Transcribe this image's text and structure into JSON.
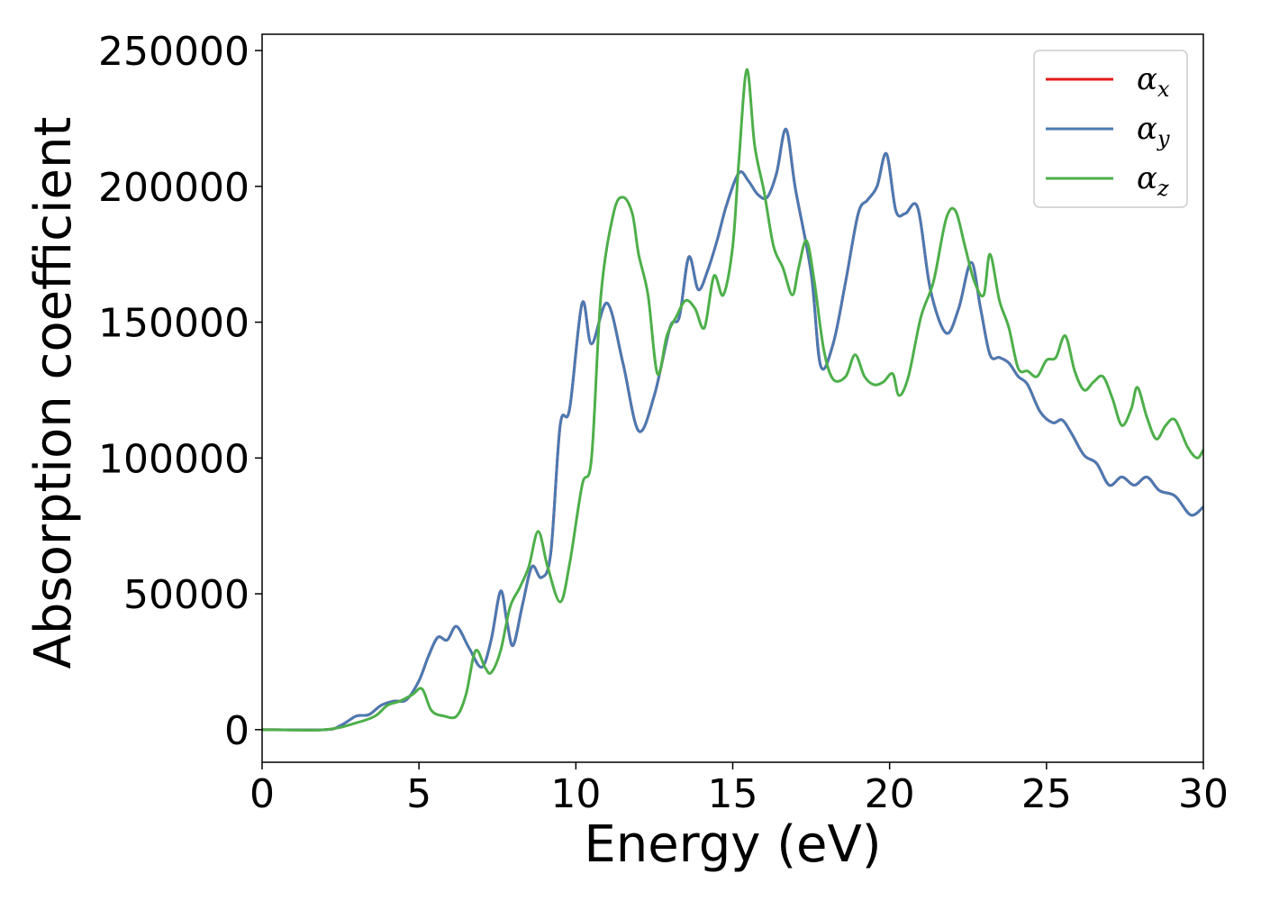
{
  "chart_data": {
    "type": "line",
    "title": "",
    "xlabel": "Energy (eV)",
    "ylabel": "Absorption coefficient",
    "xlim": [
      0,
      30
    ],
    "ylim": [
      -12000,
      256000
    ],
    "xticks": [
      0,
      5,
      10,
      15,
      20,
      25,
      30
    ],
    "yticks": [
      0,
      50000,
      100000,
      150000,
      200000,
      250000
    ],
    "grid": false,
    "legend_position": "top-right",
    "series": [
      {
        "name": "α",
        "sub": "x",
        "color": "#e41a1c",
        "points": [
          [
            0,
            0
          ],
          [
            2,
            0
          ],
          [
            2.5,
            1500
          ],
          [
            3,
            5000
          ],
          [
            3.4,
            5500
          ],
          [
            3.8,
            9000
          ],
          [
            4.2,
            10500
          ],
          [
            4.6,
            11000
          ],
          [
            5,
            18000
          ],
          [
            5.3,
            27000
          ],
          [
            5.6,
            34000
          ],
          [
            5.9,
            33000
          ],
          [
            6.2,
            38000
          ],
          [
            6.6,
            30000
          ],
          [
            7,
            23000
          ],
          [
            7.3,
            33000
          ],
          [
            7.6,
            51000
          ],
          [
            7.8,
            40000
          ],
          [
            8,
            31000
          ],
          [
            8.3,
            46000
          ],
          [
            8.6,
            60000
          ],
          [
            8.9,
            56000
          ],
          [
            9.2,
            65000
          ],
          [
            9.5,
            112000
          ],
          [
            9.8,
            118000
          ],
          [
            10.2,
            157000
          ],
          [
            10.5,
            142000
          ],
          [
            11,
            157000
          ],
          [
            11.5,
            135000
          ],
          [
            12,
            110000
          ],
          [
            12.5,
            123000
          ],
          [
            13,
            148000
          ],
          [
            13.3,
            152000
          ],
          [
            13.6,
            174000
          ],
          [
            13.9,
            162000
          ],
          [
            14.2,
            169000
          ],
          [
            14.5,
            180000
          ],
          [
            14.8,
            193000
          ],
          [
            15.2,
            205000
          ],
          [
            15.5,
            202000
          ],
          [
            15.8,
            197000
          ],
          [
            16.1,
            196000
          ],
          [
            16.4,
            205000
          ],
          [
            16.7,
            221000
          ],
          [
            17,
            199000
          ],
          [
            17.5,
            168000
          ],
          [
            17.8,
            134000
          ],
          [
            18.2,
            142000
          ],
          [
            18.6,
            165000
          ],
          [
            19,
            190000
          ],
          [
            19.3,
            195000
          ],
          [
            19.6,
            200000
          ],
          [
            19.9,
            212000
          ],
          [
            20.2,
            191000
          ],
          [
            20.5,
            190000
          ],
          [
            20.9,
            192000
          ],
          [
            21.3,
            162000
          ],
          [
            21.8,
            146000
          ],
          [
            22.2,
            155000
          ],
          [
            22.6,
            172000
          ],
          [
            22.9,
            155000
          ],
          [
            23.2,
            138000
          ],
          [
            23.5,
            137000
          ],
          [
            23.8,
            135000
          ],
          [
            24.1,
            130000
          ],
          [
            24.4,
            127000
          ],
          [
            24.8,
            117000
          ],
          [
            25.2,
            113000
          ],
          [
            25.5,
            114000
          ],
          [
            25.8,
            109000
          ],
          [
            26.2,
            101000
          ],
          [
            26.6,
            98000
          ],
          [
            27,
            90000
          ],
          [
            27.4,
            93000
          ],
          [
            27.8,
            90000
          ],
          [
            28.2,
            93000
          ],
          [
            28.6,
            88000
          ],
          [
            29.1,
            86000
          ],
          [
            29.6,
            79000
          ],
          [
            30,
            82000
          ]
        ]
      },
      {
        "name": "α",
        "sub": "y",
        "color": "#4a7ab3",
        "points": [
          [
            0,
            0
          ],
          [
            2,
            0
          ],
          [
            2.5,
            1500
          ],
          [
            3,
            5000
          ],
          [
            3.4,
            5500
          ],
          [
            3.8,
            9000
          ],
          [
            4.2,
            10500
          ],
          [
            4.6,
            11000
          ],
          [
            5,
            18000
          ],
          [
            5.3,
            27000
          ],
          [
            5.6,
            34000
          ],
          [
            5.9,
            33000
          ],
          [
            6.2,
            38000
          ],
          [
            6.6,
            30000
          ],
          [
            7,
            23000
          ],
          [
            7.3,
            33000
          ],
          [
            7.6,
            51000
          ],
          [
            7.8,
            40000
          ],
          [
            8,
            31000
          ],
          [
            8.3,
            46000
          ],
          [
            8.6,
            60000
          ],
          [
            8.9,
            56000
          ],
          [
            9.2,
            65000
          ],
          [
            9.5,
            112000
          ],
          [
            9.8,
            118000
          ],
          [
            10.2,
            157000
          ],
          [
            10.5,
            142000
          ],
          [
            11,
            157000
          ],
          [
            11.5,
            135000
          ],
          [
            12,
            110000
          ],
          [
            12.5,
            123000
          ],
          [
            13,
            148000
          ],
          [
            13.3,
            152000
          ],
          [
            13.6,
            174000
          ],
          [
            13.9,
            162000
          ],
          [
            14.2,
            169000
          ],
          [
            14.5,
            180000
          ],
          [
            14.8,
            193000
          ],
          [
            15.2,
            205000
          ],
          [
            15.5,
            202000
          ],
          [
            15.8,
            197000
          ],
          [
            16.1,
            196000
          ],
          [
            16.4,
            205000
          ],
          [
            16.7,
            221000
          ],
          [
            17,
            199000
          ],
          [
            17.5,
            168000
          ],
          [
            17.8,
            134000
          ],
          [
            18.2,
            142000
          ],
          [
            18.6,
            165000
          ],
          [
            19,
            190000
          ],
          [
            19.3,
            195000
          ],
          [
            19.6,
            200000
          ],
          [
            19.9,
            212000
          ],
          [
            20.2,
            191000
          ],
          [
            20.5,
            190000
          ],
          [
            20.9,
            192000
          ],
          [
            21.3,
            162000
          ],
          [
            21.8,
            146000
          ],
          [
            22.2,
            155000
          ],
          [
            22.6,
            172000
          ],
          [
            22.9,
            155000
          ],
          [
            23.2,
            138000
          ],
          [
            23.5,
            137000
          ],
          [
            23.8,
            135000
          ],
          [
            24.1,
            130000
          ],
          [
            24.4,
            127000
          ],
          [
            24.8,
            117000
          ],
          [
            25.2,
            113000
          ],
          [
            25.5,
            114000
          ],
          [
            25.8,
            109000
          ],
          [
            26.2,
            101000
          ],
          [
            26.6,
            98000
          ],
          [
            27,
            90000
          ],
          [
            27.4,
            93000
          ],
          [
            27.8,
            90000
          ],
          [
            28.2,
            93000
          ],
          [
            28.6,
            88000
          ],
          [
            29.1,
            86000
          ],
          [
            29.6,
            79000
          ],
          [
            30,
            82000
          ]
        ]
      },
      {
        "name": "α",
        "sub": "z",
        "color": "#4daf4a",
        "points": [
          [
            0,
            0
          ],
          [
            2,
            0
          ],
          [
            3,
            2500
          ],
          [
            3.6,
            5000
          ],
          [
            4,
            9000
          ],
          [
            4.4,
            10500
          ],
          [
            4.8,
            13000
          ],
          [
            5.1,
            15000
          ],
          [
            5.4,
            7000
          ],
          [
            5.8,
            5000
          ],
          [
            6.2,
            5000
          ],
          [
            6.5,
            13000
          ],
          [
            6.8,
            29000
          ],
          [
            7.1,
            23000
          ],
          [
            7.3,
            21000
          ],
          [
            7.6,
            29000
          ],
          [
            7.9,
            45000
          ],
          [
            8.2,
            52000
          ],
          [
            8.5,
            60000
          ],
          [
            8.8,
            73000
          ],
          [
            9.1,
            60000
          ],
          [
            9.5,
            47000
          ],
          [
            9.8,
            61000
          ],
          [
            10.2,
            90000
          ],
          [
            10.5,
            100000
          ],
          [
            10.8,
            160000
          ],
          [
            11.2,
            190000
          ],
          [
            11.5,
            196000
          ],
          [
            11.8,
            190000
          ],
          [
            12,
            175000
          ],
          [
            12.3,
            160000
          ],
          [
            12.6,
            131000
          ],
          [
            12.9,
            145000
          ],
          [
            13.2,
            152000
          ],
          [
            13.5,
            158000
          ],
          [
            13.8,
            155000
          ],
          [
            14.1,
            148000
          ],
          [
            14.4,
            167000
          ],
          [
            14.7,
            160000
          ],
          [
            15,
            178000
          ],
          [
            15.2,
            210000
          ],
          [
            15.45,
            243000
          ],
          [
            15.7,
            215000
          ],
          [
            16,
            198000
          ],
          [
            16.3,
            178000
          ],
          [
            16.6,
            170000
          ],
          [
            16.9,
            160000
          ],
          [
            17.1,
            170000
          ],
          [
            17.35,
            180000
          ],
          [
            17.6,
            165000
          ],
          [
            17.9,
            140000
          ],
          [
            18.2,
            129000
          ],
          [
            18.6,
            130000
          ],
          [
            18.9,
            138000
          ],
          [
            19.2,
            130000
          ],
          [
            19.5,
            127000
          ],
          [
            19.8,
            128000
          ],
          [
            20.1,
            131000
          ],
          [
            20.3,
            123000
          ],
          [
            20.6,
            130000
          ],
          [
            21,
            152000
          ],
          [
            21.4,
            165000
          ],
          [
            21.8,
            188000
          ],
          [
            22.1,
            191000
          ],
          [
            22.4,
            178000
          ],
          [
            22.7,
            165000
          ],
          [
            23,
            160000
          ],
          [
            23.2,
            175000
          ],
          [
            23.5,
            158000
          ],
          [
            23.8,
            148000
          ],
          [
            24.1,
            133000
          ],
          [
            24.4,
            132000
          ],
          [
            24.7,
            130000
          ],
          [
            25,
            136000
          ],
          [
            25.3,
            137000
          ],
          [
            25.6,
            145000
          ],
          [
            25.9,
            132000
          ],
          [
            26.2,
            125000
          ],
          [
            26.5,
            128000
          ],
          [
            26.8,
            130000
          ],
          [
            27.1,
            122000
          ],
          [
            27.4,
            112000
          ],
          [
            27.7,
            118000
          ],
          [
            27.9,
            126000
          ],
          [
            28.2,
            115000
          ],
          [
            28.5,
            107000
          ],
          [
            28.8,
            112000
          ],
          [
            29.1,
            114000
          ],
          [
            29.5,
            104000
          ],
          [
            29.8,
            100000
          ],
          [
            30,
            103000
          ]
        ]
      }
    ]
  }
}
